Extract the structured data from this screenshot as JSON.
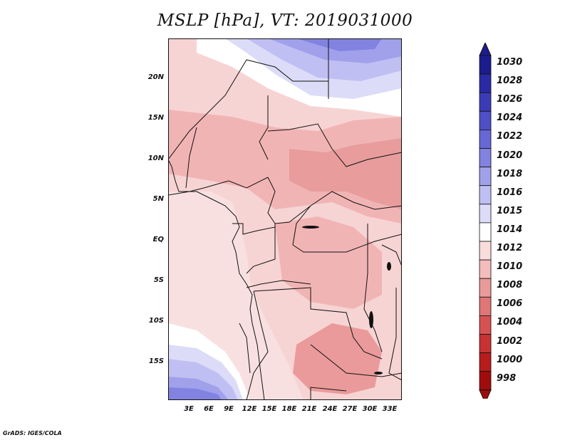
{
  "title": "MSLP [hPa], VT: 2019031000",
  "credit": "GrADS: IGES/COLA",
  "lat_labels": [
    "20N",
    "15N",
    "10N",
    "5N",
    "EQ",
    "5S",
    "10S",
    "15S"
  ],
  "lon_labels": [
    "3E",
    "6E",
    "9E",
    "12E",
    "15E",
    "18E",
    "21E",
    "24E",
    "27E",
    "30E",
    "33E"
  ],
  "colorbar": {
    "levels": [
      "1030",
      "1028",
      "1026",
      "1024",
      "1022",
      "1020",
      "1018",
      "1016",
      "1015",
      "1014",
      "1012",
      "1010",
      "1008",
      "1006",
      "1004",
      "1002",
      "1000",
      "998"
    ],
    "colors": [
      "#1c1c8e",
      "#2a2aa6",
      "#3b3bb8",
      "#4f4fc8",
      "#6767d6",
      "#8282e1",
      "#a0a0eb",
      "#bfbff3",
      "#dcdcf8",
      "#ffffff",
      "#f9dcdc",
      "#f4bcbc",
      "#ea9a9a",
      "#e07676",
      "#d65252",
      "#c83232",
      "#b81c1c",
      "#a00c0c"
    ],
    "top_arrow_color": "#1c1c8e",
    "bottom_arrow_color": "#a00c0c"
  },
  "map_colors": {
    "base": "#f7d4d4",
    "light": "#f9e0e0",
    "mid": "#f1b4b4",
    "dark": "#e89c9c",
    "blue1": "#dcdcf8",
    "blue2": "#bfbff3",
    "blue3": "#a0a0eb",
    "blue4": "#8282e1",
    "white": "#ffffff"
  }
}
